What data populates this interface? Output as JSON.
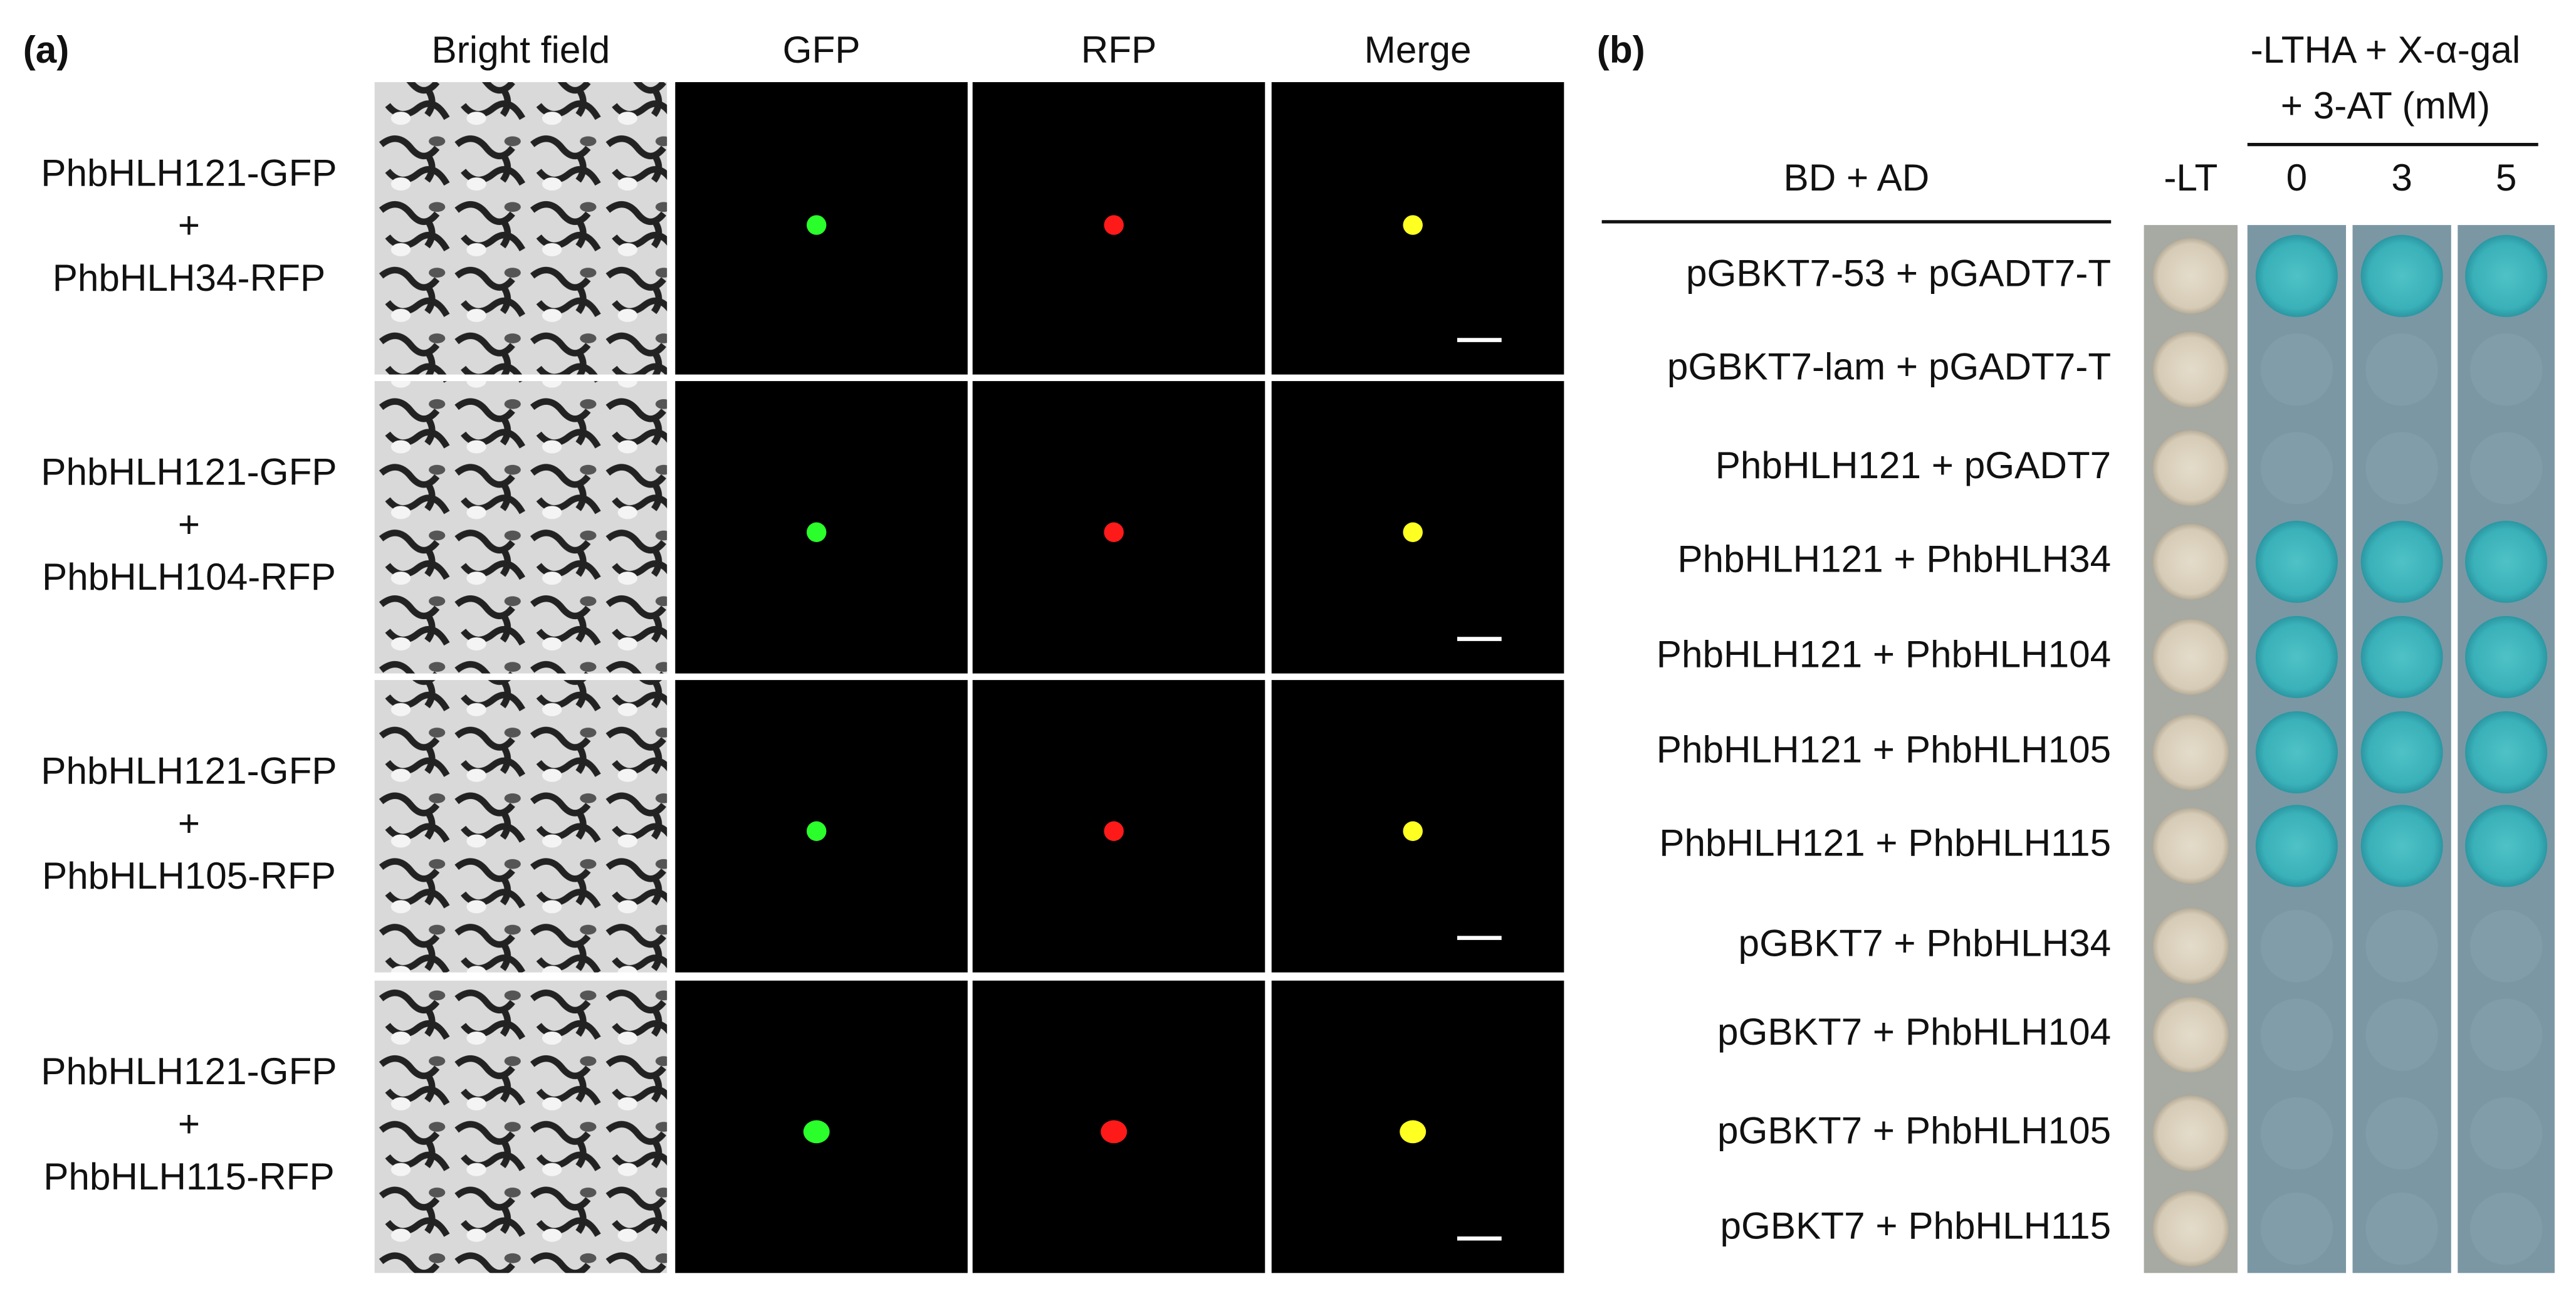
{
  "panel_a": {
    "label": "(a)",
    "columns": [
      "Bright field",
      "GFP",
      "RFP",
      "Merge"
    ],
    "rows": [
      [
        "PhbHLH121-GFP",
        "+",
        "PhbHLH34-RFP"
      ],
      [
        "PhbHLH121-GFP",
        "+",
        "PhbHLH104-RFP"
      ],
      [
        "PhbHLH121-GFP",
        "+",
        "PhbHLH105-RFP"
      ],
      [
        "PhbHLH121-GFP",
        "+",
        "PhbHLH115-RFP"
      ]
    ]
  },
  "panel_b": {
    "label": "(b)",
    "header": [
      "-LTHA + X-α-gal",
      "+ 3-AT (mM)"
    ],
    "left_header": "BD + AD",
    "columns": [
      "-LT",
      "0",
      "3",
      "5"
    ],
    "rows": [
      "pGBKT7-53 + pGADT7-T",
      "pGBKT7-lam + pGADT7-T",
      "PhbHLH121 + pGADT7",
      "PhbHLH121 + PhbHLH34",
      "PhbHLH121 + PhbHLH104",
      "PhbHLH121 + PhbHLH105",
      "PhbHLH121 + PhbHLH115",
      "pGBKT7 + PhbHLH34",
      "pGBKT7 + PhbHLH104",
      "pGBKT7 + PhbHLH105",
      "pGBKT7 + PhbHLH115"
    ]
  }
}
